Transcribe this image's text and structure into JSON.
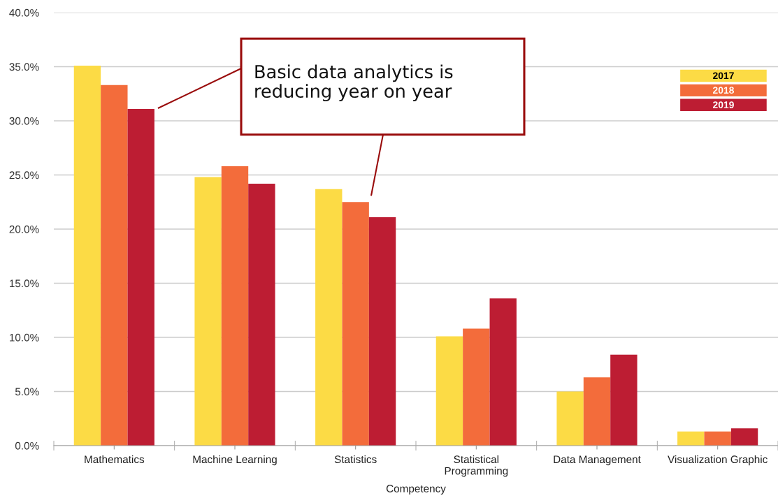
{
  "chart_data": {
    "type": "bar",
    "categories": [
      "Mathematics",
      "Machine Learning",
      "Statistics",
      "Statistical\nProgramming",
      "Data Management",
      "Visualization Graphic"
    ],
    "series": [
      {
        "name": "2017",
        "color": "#fcdb45",
        "values": [
          35.1,
          24.8,
          23.7,
          10.1,
          5.0,
          1.3
        ]
      },
      {
        "name": "2018",
        "color": "#f36c3b",
        "values": [
          33.3,
          25.8,
          22.5,
          10.8,
          6.3,
          1.3
        ]
      },
      {
        "name": "2019",
        "color": "#bd1d33",
        "values": [
          31.1,
          24.2,
          21.1,
          13.6,
          8.4,
          1.6
        ]
      }
    ],
    "xlabel": "Competency",
    "ylim": [
      0,
      40
    ],
    "yticks": [
      {
        "value": 0,
        "label": "0.0%"
      },
      {
        "value": 5,
        "label": "5.0%"
      },
      {
        "value": 10,
        "label": "10.0%"
      },
      {
        "value": 15,
        "label": "15.0%"
      },
      {
        "value": 20,
        "label": "20.0%"
      },
      {
        "value": 25,
        "label": "25.0%"
      },
      {
        "value": 30,
        "label": "30.0%"
      },
      {
        "value": 35,
        "label": "35.0%"
      },
      {
        "value": 40,
        "label": "40.0%"
      }
    ],
    "grid": "y",
    "legend": "top right",
    "annotations": [
      "Basic data analytics is\nreducing year on year"
    ]
  }
}
